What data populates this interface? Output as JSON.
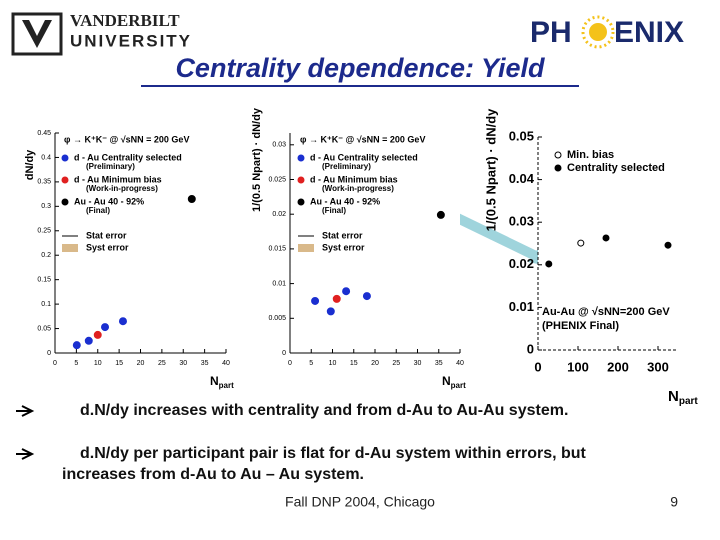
{
  "header": {
    "logo_left_line1": "VANDERBILT",
    "logo_left_line2": "UNIVERSITY",
    "logo_right_start": "PH",
    "logo_right_end": "ENIX"
  },
  "title": "Centrality dependence: Yield",
  "chart_data": [
    {
      "type": "scatter",
      "annotation": "φ → K⁺K⁻ @ √sNN = 200 GeV",
      "ylabel": "dN/dy",
      "xlabel": "N",
      "xlabel_sub": "part",
      "xlim": [
        0,
        40
      ],
      "xticks": [
        0,
        5,
        10,
        15,
        20,
        25,
        30,
        35,
        40
      ],
      "ylim": [
        0,
        0.45
      ],
      "yticks": [
        0,
        0.05,
        0.1,
        0.15,
        0.2,
        0.25,
        0.3,
        0.35,
        0.4,
        0.45
      ],
      "grid": false,
      "stat_label": "Stat error",
      "syst_label": "Syst error",
      "series": [
        {
          "name": "d - Au Centrality selected",
          "note": "(Preliminary)",
          "color": "#1a2fd0",
          "filled": true,
          "x": [
            5.1,
            7.9,
            11.7,
            15.9
          ],
          "values": [
            0.016,
            0.025,
            0.053,
            0.065
          ]
        },
        {
          "name": "d - Au Minimum bias",
          "note": "(Work-in-progress)",
          "color": "#e02020",
          "filled": true,
          "x": [
            10
          ],
          "values": [
            0.037
          ]
        },
        {
          "name": "Au - Au 40 - 92%",
          "note": "(Final)",
          "color": "#000000",
          "filled": true,
          "x": [
            32
          ],
          "values": [
            0.315
          ]
        }
      ]
    },
    {
      "type": "scatter",
      "annotation": "φ → K⁺K⁻ @ √sNN = 200 GeV",
      "ylabel": "1/(0.5 Npart) · dN/dy",
      "xlabel": "N",
      "xlabel_sub": "part",
      "xlim": [
        0,
        40
      ],
      "xticks": [
        0,
        5,
        10,
        15,
        20,
        25,
        30,
        35,
        40
      ],
      "ylim": [
        0,
        0.0317
      ],
      "yticks": [
        0,
        0.005,
        0.01,
        0.015,
        0.02,
        0.025,
        0.03
      ],
      "grid": false,
      "stat_label": "Stat error",
      "syst_label": "Syst error",
      "series": [
        {
          "name": "d - Au Centrality selected",
          "note": "(Preliminary)",
          "color": "#1a2fd0",
          "filled": true,
          "x": [
            5.9,
            9.6,
            13.2,
            18.1
          ],
          "values": [
            0.0075,
            0.006,
            0.0089,
            0.0082
          ]
        },
        {
          "name": "d - Au Minimum bias",
          "note": "(Work-in-progress)",
          "color": "#e02020",
          "filled": true,
          "x": [
            11
          ],
          "values": [
            0.0078
          ]
        },
        {
          "name": "Au - Au 40 - 92%",
          "note": "(Final)",
          "color": "#000000",
          "filled": true,
          "x": [
            35.5
          ],
          "values": [
            0.0199
          ]
        }
      ]
    },
    {
      "type": "scatter",
      "annotation": "Au-Au @ √sNN=200 GeV",
      "annotation2": "(PHENIX Final)",
      "ylabel": "1/(0.5 Npart) · dN/dy",
      "xlabel": "N",
      "xlabel_sub": "part",
      "xlim": [
        0,
        350
      ],
      "xticks": [
        0,
        100,
        200,
        300
      ],
      "ylim": [
        0,
        0.05
      ],
      "yticks": [
        0,
        0.01,
        0.02,
        0.03,
        0.04,
        0.05
      ],
      "grid": false,
      "series": [
        {
          "name": "Min. bias",
          "color": "#000000",
          "filled": false,
          "x": [
            107
          ],
          "values": [
            0.0251
          ]
        },
        {
          "name": "Centrality selected",
          "color": "#000000",
          "filled": true,
          "x": [
            27,
            170,
            325
          ],
          "values": [
            0.0202,
            0.0263,
            0.0246
          ]
        }
      ]
    }
  ],
  "bullets": [
    [
      "d.N/dy increases with centrality and from d-Au to Au-Au system."
    ],
    [
      "d.N/dy per participant pair is flat for d-Au system within errors, but",
      "increases from d-Au to Au – Au system."
    ]
  ],
  "footer": {
    "text": "Fall DNP 2004, Chicago",
    "page": "9"
  }
}
